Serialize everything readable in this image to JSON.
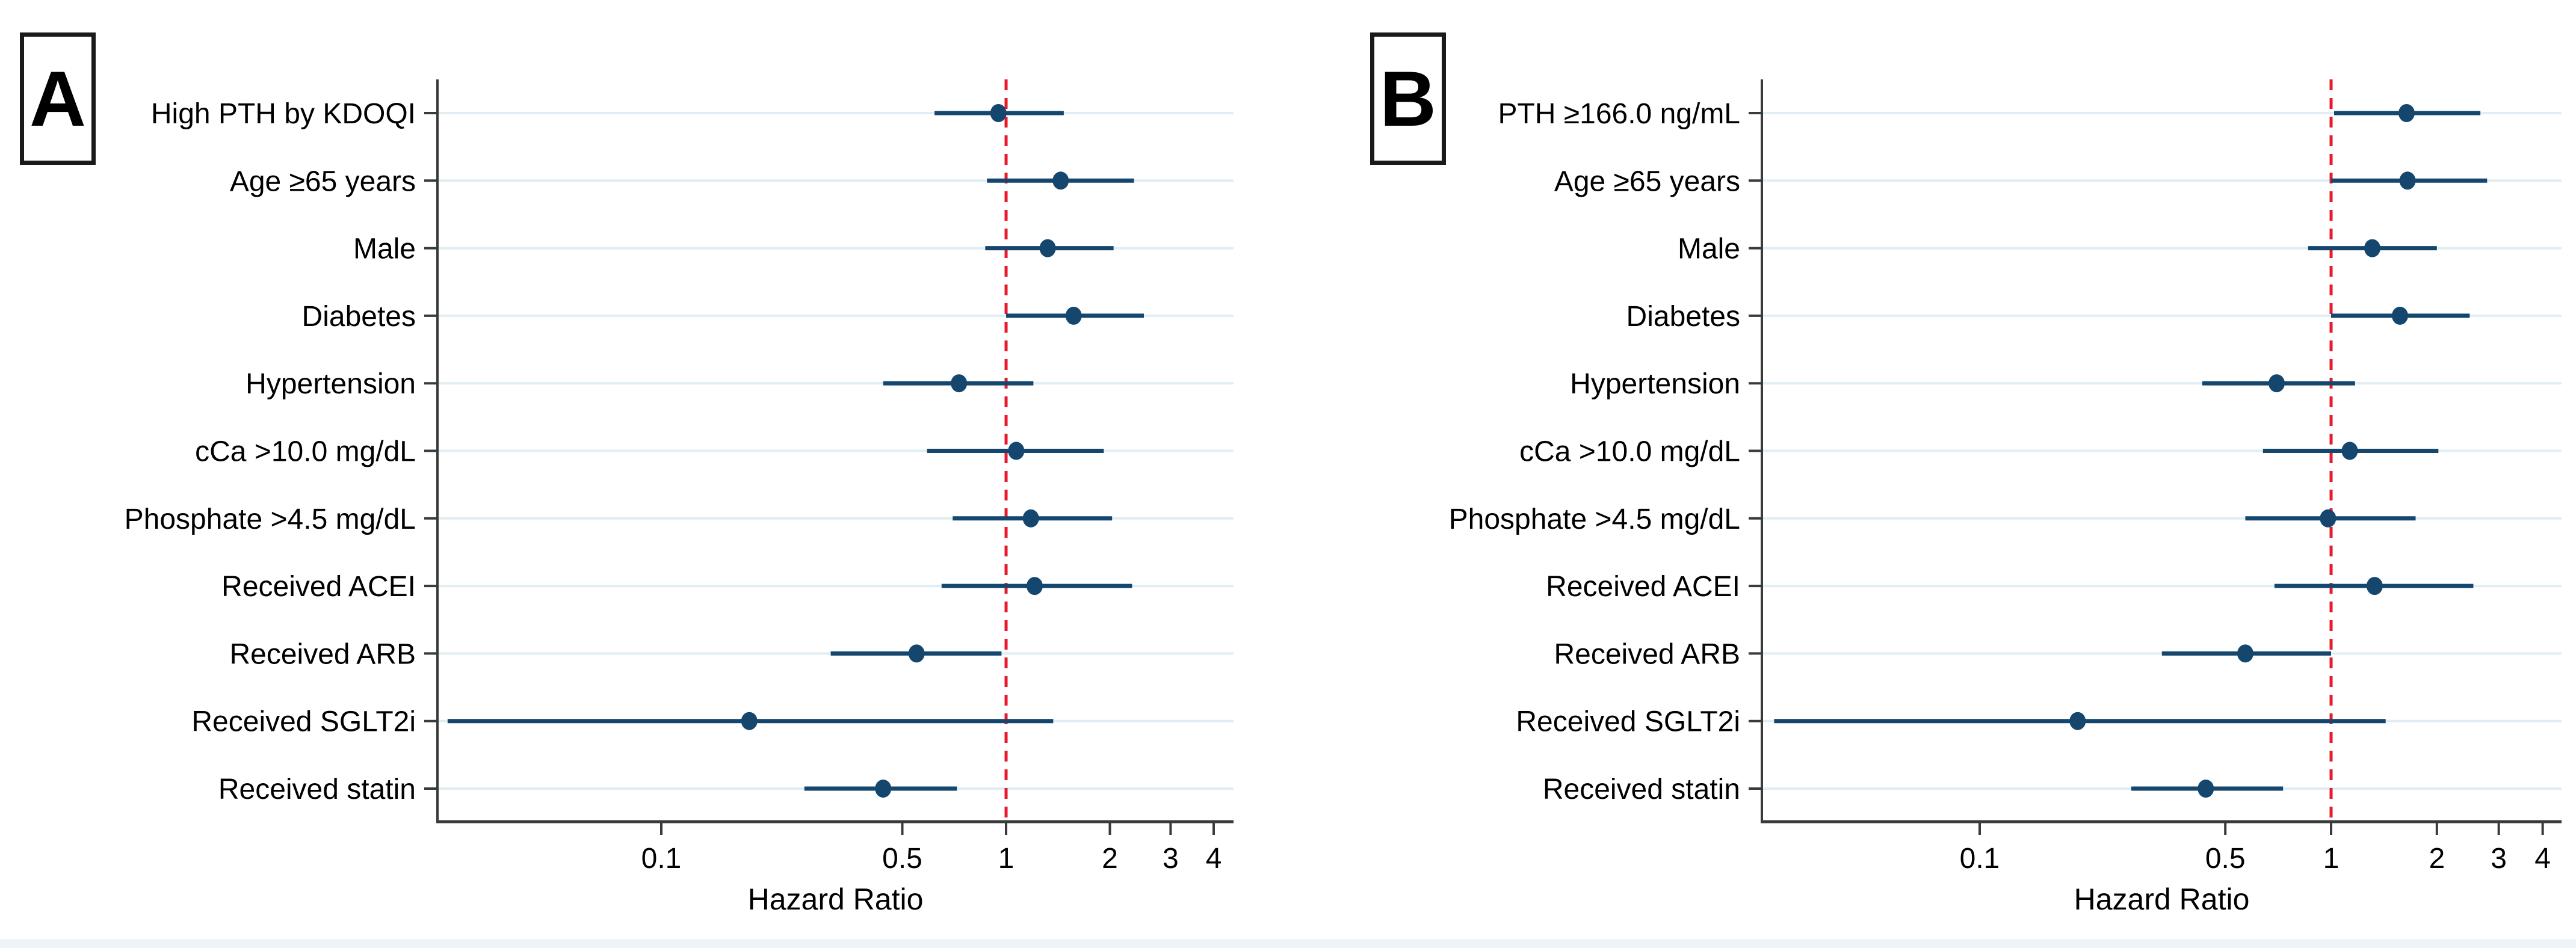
{
  "figure_title": "",
  "colors": {
    "marker": "#15476e",
    "ci_line": "#15476e",
    "ref_line": "#e8192c",
    "gridline": "#e0eef3",
    "axis": "#3a3a3a",
    "text": "#000000",
    "panel_border": "#1a1a1a",
    "background": "#ffffff",
    "bottom_strip": "#edf3f6"
  },
  "chart_data": [
    {
      "type": "scatter",
      "subtype": "forest-plot",
      "panel": "A",
      "xlabel": "Hazard Ratio",
      "x_scale": "log",
      "x_ticks": [
        0.1,
        0.5,
        1,
        2,
        3,
        4
      ],
      "x_range": [
        0.022,
        4.6
      ],
      "ref_line_x": 1,
      "grid": "horizontal",
      "legend": "none",
      "rows": [
        {
          "label": "High PTH by KDOQI",
          "hr": 0.95,
          "ci_low": 0.62,
          "ci_high": 1.47
        },
        {
          "label": "Age ≥65 years",
          "hr": 1.44,
          "ci_low": 0.88,
          "ci_high": 2.35
        },
        {
          "label": "Male",
          "hr": 1.32,
          "ci_low": 0.87,
          "ci_high": 2.05
        },
        {
          "label": "Diabetes",
          "hr": 1.57,
          "ci_low": 1.0,
          "ci_high": 2.51
        },
        {
          "label": "Hypertension",
          "hr": 0.73,
          "ci_low": 0.44,
          "ci_high": 1.2
        },
        {
          "label": "cCa >10.0 mg/dL",
          "hr": 1.07,
          "ci_low": 0.59,
          "ci_high": 1.92
        },
        {
          "label": "Phosphate >4.5 mg/dL",
          "hr": 1.18,
          "ci_low": 0.7,
          "ci_high": 2.03
        },
        {
          "label": "Received ACEI",
          "hr": 1.21,
          "ci_low": 0.65,
          "ci_high": 2.32
        },
        {
          "label": "Received ARB",
          "hr": 0.55,
          "ci_low": 0.31,
          "ci_high": 0.97
        },
        {
          "label": "Received SGLT2i",
          "hr": 0.18,
          "ci_low": 0.024,
          "ci_high": 1.37
        },
        {
          "label": "Received statin",
          "hr": 0.44,
          "ci_low": 0.26,
          "ci_high": 0.72
        }
      ]
    },
    {
      "type": "scatter",
      "subtype": "forest-plot",
      "panel": "B",
      "xlabel": "Hazard Ratio",
      "x_scale": "log",
      "x_ticks": [
        0.1,
        0.5,
        1,
        2,
        3,
        4
      ],
      "x_range": [
        0.023,
        4.6
      ],
      "ref_line_x": 1,
      "grid": "horizontal",
      "legend": "none",
      "rows": [
        {
          "label": "PTH ≥166.0 ng/mL",
          "hr": 1.64,
          "ci_low": 1.02,
          "ci_high": 2.66
        },
        {
          "label": "Age ≥65 years",
          "hr": 1.65,
          "ci_low": 1.0,
          "ci_high": 2.78
        },
        {
          "label": "Male",
          "hr": 1.31,
          "ci_low": 0.86,
          "ci_high": 2.0
        },
        {
          "label": "Diabetes",
          "hr": 1.57,
          "ci_low": 1.0,
          "ci_high": 2.48
        },
        {
          "label": "Hypertension",
          "hr": 0.7,
          "ci_low": 0.43,
          "ci_high": 1.17
        },
        {
          "label": "cCa >10.0 mg/dL",
          "hr": 1.13,
          "ci_low": 0.64,
          "ci_high": 2.02
        },
        {
          "label": "Phosphate >4.5 mg/dL",
          "hr": 0.98,
          "ci_low": 0.57,
          "ci_high": 1.74
        },
        {
          "label": "Received ACEI",
          "hr": 1.33,
          "ci_low": 0.69,
          "ci_high": 2.54
        },
        {
          "label": "Received ARB",
          "hr": 0.57,
          "ci_low": 0.33,
          "ci_high": 1.0
        },
        {
          "label": "Received SGLT2i",
          "hr": 0.19,
          "ci_low": 0.026,
          "ci_high": 1.43
        },
        {
          "label": "Received statin",
          "hr": 0.44,
          "ci_low": 0.27,
          "ci_high": 0.73
        }
      ]
    }
  ]
}
